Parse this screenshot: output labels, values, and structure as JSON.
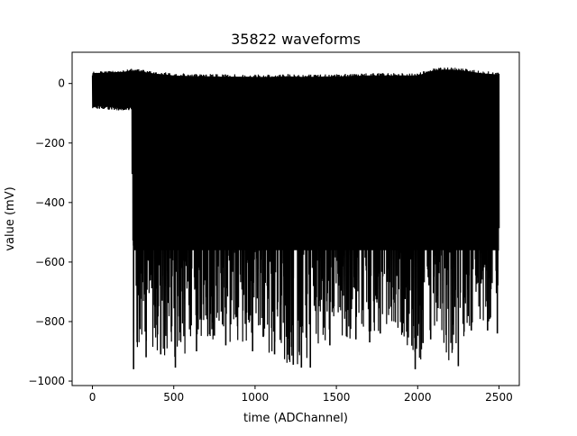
{
  "chart_data": {
    "type": "line",
    "title": "35822 waveforms",
    "xlabel": "time (ADChannel)",
    "ylabel": "value (mV)",
    "xlim": [
      -125,
      2625
    ],
    "ylim": [
      -1015,
      105
    ],
    "xticks": [
      0,
      500,
      1000,
      1500,
      2000,
      2500
    ],
    "yticks": [
      0,
      -200,
      -400,
      -600,
      -800,
      -1000
    ],
    "grid": false,
    "legend": "none",
    "line_color": "#000000",
    "envelope": {
      "x": [
        0,
        100,
        200,
        240,
        250,
        300,
        400,
        500,
        600,
        700,
        800,
        900,
        1000,
        1100,
        1200,
        1300,
        1400,
        1500,
        1600,
        1700,
        1800,
        1900,
        2000,
        2100,
        2200,
        2300,
        2400,
        2500
      ],
      "max": [
        40,
        42,
        45,
        50,
        52,
        48,
        40,
        35,
        33,
        32,
        31,
        31,
        30,
        30,
        32,
        30,
        31,
        32,
        33,
        35,
        35,
        35,
        35,
        52,
        55,
        50,
        42,
        38
      ],
      "min": [
        -85,
        -88,
        -92,
        -90,
        -960,
        -850,
        -920,
        -960,
        -900,
        -880,
        -860,
        -880,
        -900,
        -920,
        -950,
        -960,
        -880,
        -860,
        -860,
        -850,
        -850,
        -850,
        -960,
        -860,
        -950,
        -830,
        -830,
        -830
      ]
    },
    "spikes": [
      {
        "x": 253,
        "y": -960
      },
      {
        "x": 330,
        "y": -920
      },
      {
        "x": 420,
        "y": -910
      },
      {
        "x": 510,
        "y": -955
      },
      {
        "x": 640,
        "y": -900
      },
      {
        "x": 820,
        "y": -880
      },
      {
        "x": 985,
        "y": -900
      },
      {
        "x": 1120,
        "y": -910
      },
      {
        "x": 1235,
        "y": -945
      },
      {
        "x": 1285,
        "y": -955
      },
      {
        "x": 1340,
        "y": -955
      },
      {
        "x": 1460,
        "y": -880
      },
      {
        "x": 1620,
        "y": -860
      },
      {
        "x": 1705,
        "y": -870
      },
      {
        "x": 1770,
        "y": -840
      },
      {
        "x": 1985,
        "y": -960
      },
      {
        "x": 2080,
        "y": -860
      },
      {
        "x": 2250,
        "y": -950
      },
      {
        "x": 2330,
        "y": -830
      },
      {
        "x": 2430,
        "y": -830
      },
      {
        "x": 2490,
        "y": -840
      }
    ]
  }
}
